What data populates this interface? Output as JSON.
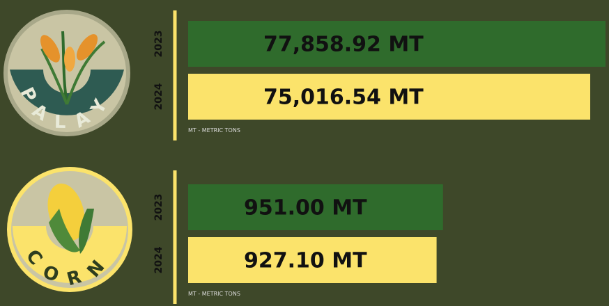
{
  "chart_data": [
    {
      "type": "hbar",
      "title": "PALAY",
      "categories": [
        "2023",
        "2024"
      ],
      "values": [
        77858.92,
        75016.54
      ],
      "value_labels": [
        "77,858.92 MT",
        "75,016.54 MT"
      ],
      "colors": [
        "#2f6b2c",
        "#fbe36b"
      ],
      "xlim": [
        0,
        78000
      ],
      "note": "MT - METRIC TONS"
    },
    {
      "type": "hbar",
      "title": "CORN",
      "categories": [
        "2023",
        "2024"
      ],
      "values": [
        951.0,
        927.1
      ],
      "value_labels": [
        "951.00 MT",
        "927.10 MT"
      ],
      "colors": [
        "#2f6b2c",
        "#fbe36b"
      ],
      "xlim": [
        0,
        1560
      ],
      "note": "MT - METRIC TONS"
    }
  ]
}
